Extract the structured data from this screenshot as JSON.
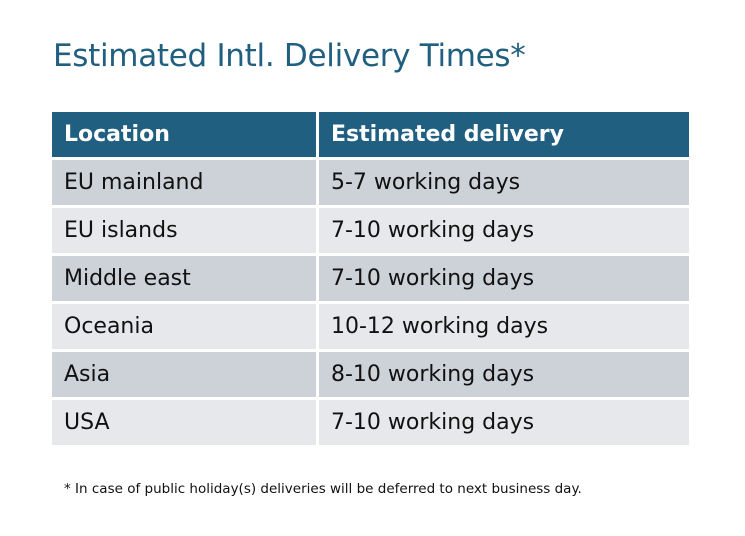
{
  "title": "Estimated Intl. Delivery Times*",
  "table": {
    "headers": [
      "Location",
      "Estimated delivery"
    ],
    "rows": [
      [
        "EU mainland",
        "5-7 working days"
      ],
      [
        "EU islands",
        "7-10 working days"
      ],
      [
        "Middle east",
        "7-10 working days"
      ],
      [
        "Oceania",
        "10-12 working days"
      ],
      [
        "Asia",
        "8-10 working days"
      ],
      [
        "USA",
        "7-10 working days"
      ]
    ]
  },
  "footnote": "* In case of public holiday(s) deliveries will be deferred to next business day.",
  "colors": {
    "header": "#215F80",
    "row_dark": "#CDD1D8",
    "row_light": "#E6E8EB",
    "title": "#215F80"
  }
}
